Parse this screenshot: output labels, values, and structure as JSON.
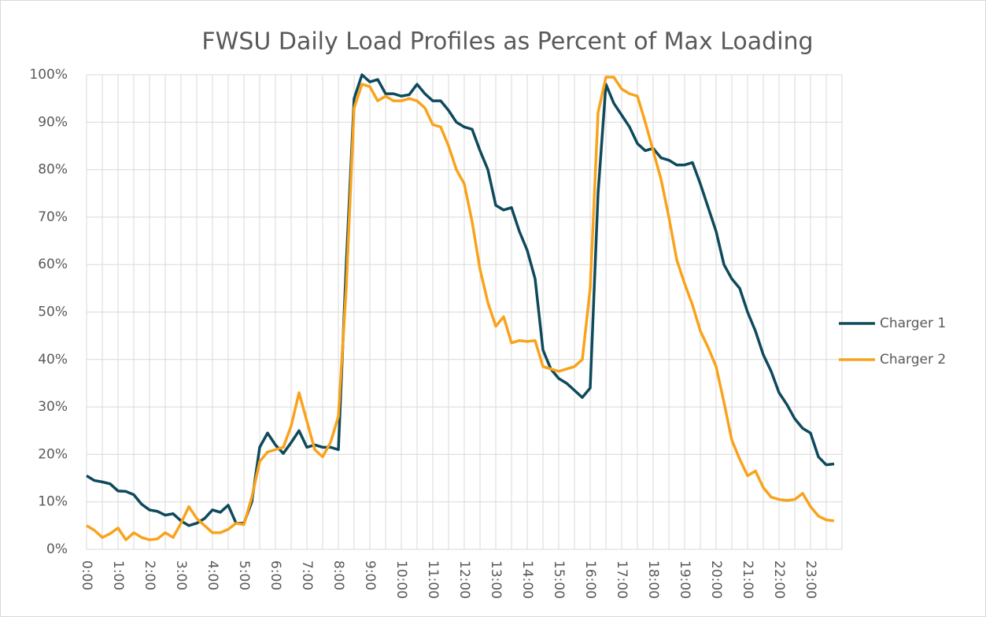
{
  "chart_data": {
    "type": "line",
    "title": "FWSU Daily Load Profiles as Percent of Max Loading",
    "categories": [
      "0:00",
      null,
      null,
      null,
      "1:00",
      null,
      null,
      null,
      "2:00",
      null,
      null,
      null,
      "3:00",
      null,
      null,
      null,
      "4:00",
      null,
      null,
      null,
      "5:00",
      null,
      null,
      null,
      "6:00",
      null,
      null,
      null,
      "7:00",
      null,
      null,
      null,
      "8:00",
      null,
      null,
      null,
      "9:00",
      null,
      null,
      null,
      "10:00",
      null,
      null,
      null,
      "11:00",
      null,
      null,
      null,
      "12:00",
      null,
      null,
      null,
      "13:00",
      null,
      null,
      null,
      "14:00",
      null,
      null,
      null,
      "15:00",
      null,
      null,
      null,
      "16:00",
      null,
      null,
      null,
      "17:00",
      null,
      null,
      null,
      "18:00",
      null,
      null,
      null,
      "19:00",
      null,
      null,
      null,
      "20:00",
      null,
      null,
      null,
      "21:00",
      null,
      null,
      null,
      "22:00",
      null,
      null,
      null,
      "23:00",
      null,
      null,
      null
    ],
    "series": [
      {
        "name": "Charger 1",
        "color": "#0e4a5c",
        "values": [
          15.5,
          14.5,
          14.2,
          13.8,
          12.3,
          12.2,
          11.5,
          9.5,
          8.3,
          8.0,
          7.2,
          7.5,
          6.0,
          5.0,
          5.5,
          6.5,
          8.3,
          7.8,
          9.3,
          5.5,
          5.5,
          10,
          21.5,
          24.5,
          22,
          20.2,
          22.5,
          25,
          21.5,
          22,
          21.5,
          21.5,
          21,
          60,
          95,
          100,
          98.5,
          99,
          96,
          96,
          95.5,
          95.8,
          98,
          96,
          94.5,
          94.5,
          92.5,
          90,
          89,
          88.5,
          84,
          80,
          72.5,
          71.5,
          72,
          67,
          63,
          57,
          42,
          38,
          36,
          35,
          33.5,
          32,
          34,
          75,
          98,
          94,
          91.5,
          89,
          85.5,
          84,
          84.5,
          82.5,
          82,
          81,
          81,
          81.5,
          77,
          72,
          67,
          60,
          57,
          55,
          50,
          46,
          41,
          37.5,
          33,
          30.5,
          27.5,
          25.5,
          24.5,
          19.5,
          17.8,
          18
        ]
      },
      {
        "name": "Charger 2",
        "color": "#f9a31c",
        "values": [
          5,
          4,
          2.5,
          3.3,
          4.5,
          2,
          3.5,
          2.5,
          2,
          2.2,
          3.5,
          2.5,
          5.5,
          9,
          6.5,
          5,
          3.5,
          3.5,
          4.2,
          5.5,
          5.2,
          11,
          18.5,
          20.5,
          21,
          21.5,
          26,
          33,
          27,
          21,
          19.5,
          22.5,
          28,
          55,
          93,
          98,
          97.5,
          94.5,
          95.5,
          94.5,
          94.5,
          95,
          94.5,
          93,
          89.5,
          89,
          85,
          80,
          77,
          69,
          59,
          52,
          47,
          49,
          43.5,
          44,
          43.8,
          44,
          38.5,
          38,
          37.5,
          38,
          38.5,
          40,
          55,
          92,
          99.5,
          99.5,
          97,
          96,
          95.5,
          90,
          84,
          78,
          70,
          61,
          56,
          51.5,
          46,
          42.5,
          38.5,
          31,
          23,
          19,
          15.5,
          16.5,
          13,
          11,
          10.5,
          10.3,
          10.5,
          11.8,
          9,
          7,
          6.2,
          6
        ]
      }
    ],
    "ylim": [
      0,
      100
    ],
    "yticks": [
      {
        "value": 0,
        "label": "0%"
      },
      {
        "value": 10,
        "label": "10%"
      },
      {
        "value": 20,
        "label": "20%"
      },
      {
        "value": 30,
        "label": "30%"
      },
      {
        "value": 40,
        "label": "40%"
      },
      {
        "value": 50,
        "label": "50%"
      },
      {
        "value": 60,
        "label": "60%"
      },
      {
        "value": 70,
        "label": "70%"
      },
      {
        "value": 80,
        "label": "80%"
      },
      {
        "value": 90,
        "label": "90%"
      },
      {
        "value": 100,
        "label": "100%"
      }
    ],
    "grid": true,
    "legend": "right"
  }
}
